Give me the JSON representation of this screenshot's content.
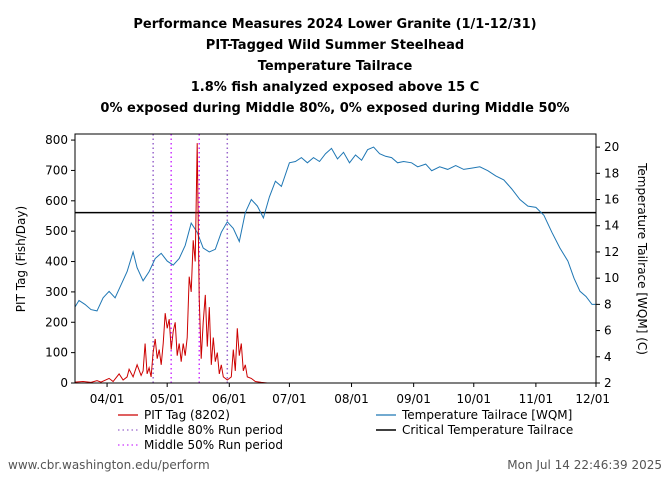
{
  "chart_data": {
    "type": "line",
    "title_lines": [
      "Performance Measures 2024 Lower Granite (1/1-12/31)",
      "PIT-Tagged Wild Summer Steelhead",
      "Temperature Tailrace",
      "1.8% fish analyzed exposed above 15 C",
      "0% exposed during Middle 80%, 0% exposed during Middle 50%"
    ],
    "ylabel": "PIT Tag (Fish/Day)",
    "y2label": "Temperature Tailrace [WQM] (C)",
    "xlim": [
      "2024-03-16",
      "2024-12-01"
    ],
    "ylim": [
      0,
      820
    ],
    "y2lim": [
      2,
      21
    ],
    "x_ticks": [
      {
        "date": "2024-04-01",
        "label": "04/01"
      },
      {
        "date": "2024-05-01",
        "label": "05/01"
      },
      {
        "date": "2024-06-01",
        "label": "06/01"
      },
      {
        "date": "2024-07-01",
        "label": "07/01"
      },
      {
        "date": "2024-08-01",
        "label": "08/01"
      },
      {
        "date": "2024-09-01",
        "label": "09/01"
      },
      {
        "date": "2024-10-01",
        "label": "10/01"
      },
      {
        "date": "2024-11-01",
        "label": "11/01"
      },
      {
        "date": "2024-12-01",
        "label": "12/01"
      }
    ],
    "y_ticks": [
      0,
      100,
      200,
      300,
      400,
      500,
      600,
      700,
      800
    ],
    "y2_ticks": [
      2,
      4,
      6,
      8,
      10,
      12,
      14,
      16,
      18,
      20
    ],
    "critical_temperature": 15,
    "middle_80_dates": [
      "2024-04-24",
      "2024-05-31"
    ],
    "middle_50_dates": [
      "2024-05-03",
      "2024-05-17"
    ],
    "pit_tag": {
      "name": "PIT Tag (8202)",
      "color": "#cc0000",
      "points": [
        [
          "2024-03-16",
          3
        ],
        [
          "2024-03-20",
          5
        ],
        [
          "2024-03-24",
          2
        ],
        [
          "2024-03-27",
          8
        ],
        [
          "2024-03-29",
          3
        ],
        [
          "2024-04-02",
          15
        ],
        [
          "2024-04-04",
          5
        ],
        [
          "2024-04-07",
          30
        ],
        [
          "2024-04-09",
          10
        ],
        [
          "2024-04-11",
          20
        ],
        [
          "2024-04-12",
          45
        ],
        [
          "2024-04-14",
          20
        ],
        [
          "2024-04-16",
          60
        ],
        [
          "2024-04-18",
          25
        ],
        [
          "2024-04-19",
          40
        ],
        [
          "2024-04-20",
          130
        ],
        [
          "2024-04-21",
          30
        ],
        [
          "2024-04-22",
          50
        ],
        [
          "2024-04-23",
          20
        ],
        [
          "2024-04-24",
          100
        ],
        [
          "2024-04-25",
          145
        ],
        [
          "2024-04-26",
          80
        ],
        [
          "2024-04-27",
          110
        ],
        [
          "2024-04-28",
          60
        ],
        [
          "2024-04-29",
          130
        ],
        [
          "2024-04-30",
          230
        ],
        [
          "2024-05-01",
          180
        ],
        [
          "2024-05-02",
          210
        ],
        [
          "2024-05-03",
          110
        ],
        [
          "2024-05-04",
          170
        ],
        [
          "2024-05-05",
          200
        ],
        [
          "2024-05-06",
          90
        ],
        [
          "2024-05-07",
          130
        ],
        [
          "2024-05-08",
          70
        ],
        [
          "2024-05-09",
          130
        ],
        [
          "2024-05-10",
          90
        ],
        [
          "2024-05-11",
          150
        ],
        [
          "2024-05-12",
          350
        ],
        [
          "2024-05-13",
          300
        ],
        [
          "2024-05-14",
          470
        ],
        [
          "2024-05-15",
          400
        ],
        [
          "2024-05-16",
          790
        ],
        [
          "2024-05-17",
          280
        ],
        [
          "2024-05-18",
          80
        ],
        [
          "2024-05-19",
          200
        ],
        [
          "2024-05-20",
          290
        ],
        [
          "2024-05-21",
          120
        ],
        [
          "2024-05-22",
          250
        ],
        [
          "2024-05-23",
          60
        ],
        [
          "2024-05-24",
          150
        ],
        [
          "2024-05-25",
          70
        ],
        [
          "2024-05-26",
          100
        ],
        [
          "2024-05-27",
          30
        ],
        [
          "2024-05-28",
          60
        ],
        [
          "2024-05-29",
          20
        ],
        [
          "2024-05-30",
          15
        ],
        [
          "2024-05-31",
          10
        ],
        [
          "2024-06-02",
          20
        ],
        [
          "2024-06-03",
          110
        ],
        [
          "2024-06-04",
          40
        ],
        [
          "2024-06-05",
          180
        ],
        [
          "2024-06-06",
          90
        ],
        [
          "2024-06-07",
          130
        ],
        [
          "2024-06-08",
          40
        ],
        [
          "2024-06-09",
          60
        ],
        [
          "2024-06-10",
          20
        ],
        [
          "2024-06-12",
          15
        ],
        [
          "2024-06-14",
          5
        ],
        [
          "2024-06-17",
          2
        ],
        [
          "2024-06-20",
          0
        ],
        [
          "2024-06-25",
          0
        ]
      ]
    },
    "temperature": {
      "name": "Temperature Tailrace [WQM]",
      "color": "#1f77b4",
      "points": [
        [
          "2024-03-16",
          7.8
        ],
        [
          "2024-03-18",
          8.3
        ],
        [
          "2024-03-21",
          8.0
        ],
        [
          "2024-03-24",
          7.6
        ],
        [
          "2024-03-27",
          7.5
        ],
        [
          "2024-03-30",
          8.5
        ],
        [
          "2024-04-02",
          9.0
        ],
        [
          "2024-04-05",
          8.5
        ],
        [
          "2024-04-08",
          9.5
        ],
        [
          "2024-04-11",
          10.5
        ],
        [
          "2024-04-14",
          12.0
        ],
        [
          "2024-04-16",
          10.8
        ],
        [
          "2024-04-19",
          9.8
        ],
        [
          "2024-04-22",
          10.5
        ],
        [
          "2024-04-25",
          11.5
        ],
        [
          "2024-04-28",
          11.9
        ],
        [
          "2024-05-01",
          11.3
        ],
        [
          "2024-05-04",
          11.0
        ],
        [
          "2024-05-07",
          11.5
        ],
        [
          "2024-05-10",
          12.5
        ],
        [
          "2024-05-13",
          14.2
        ],
        [
          "2024-05-16",
          13.5
        ],
        [
          "2024-05-19",
          12.3
        ],
        [
          "2024-05-22",
          12.0
        ],
        [
          "2024-05-25",
          12.2
        ],
        [
          "2024-05-28",
          13.5
        ],
        [
          "2024-05-31",
          14.3
        ],
        [
          "2024-06-03",
          13.8
        ],
        [
          "2024-06-06",
          12.8
        ],
        [
          "2024-06-09",
          15.0
        ],
        [
          "2024-06-12",
          16.0
        ],
        [
          "2024-06-15",
          15.5
        ],
        [
          "2024-06-18",
          14.6
        ],
        [
          "2024-06-21",
          16.2
        ],
        [
          "2024-06-24",
          17.4
        ],
        [
          "2024-06-27",
          17.0
        ],
        [
          "2024-07-01",
          18.8
        ],
        [
          "2024-07-04",
          18.9
        ],
        [
          "2024-07-07",
          19.2
        ],
        [
          "2024-07-10",
          18.8
        ],
        [
          "2024-07-13",
          19.2
        ],
        [
          "2024-07-16",
          18.9
        ],
        [
          "2024-07-19",
          19.5
        ],
        [
          "2024-07-22",
          19.9
        ],
        [
          "2024-07-25",
          19.1
        ],
        [
          "2024-07-28",
          19.6
        ],
        [
          "2024-07-31",
          18.8
        ],
        [
          "2024-08-03",
          19.4
        ],
        [
          "2024-08-06",
          19.0
        ],
        [
          "2024-08-09",
          19.8
        ],
        [
          "2024-08-12",
          20.0
        ],
        [
          "2024-08-15",
          19.5
        ],
        [
          "2024-08-18",
          19.3
        ],
        [
          "2024-08-21",
          19.2
        ],
        [
          "2024-08-24",
          18.8
        ],
        [
          "2024-08-27",
          18.9
        ],
        [
          "2024-08-31",
          18.8
        ],
        [
          "2024-09-03",
          18.5
        ],
        [
          "2024-09-07",
          18.7
        ],
        [
          "2024-09-10",
          18.2
        ],
        [
          "2024-09-14",
          18.5
        ],
        [
          "2024-09-18",
          18.3
        ],
        [
          "2024-09-22",
          18.6
        ],
        [
          "2024-09-26",
          18.3
        ],
        [
          "2024-09-30",
          18.4
        ],
        [
          "2024-10-04",
          18.5
        ],
        [
          "2024-10-08",
          18.2
        ],
        [
          "2024-10-12",
          17.8
        ],
        [
          "2024-10-16",
          17.5
        ],
        [
          "2024-10-20",
          16.8
        ],
        [
          "2024-10-24",
          16.0
        ],
        [
          "2024-10-28",
          15.5
        ],
        [
          "2024-11-01",
          15.4
        ],
        [
          "2024-11-05",
          14.8
        ],
        [
          "2024-11-09",
          13.5
        ],
        [
          "2024-11-13",
          12.3
        ],
        [
          "2024-11-17",
          11.3
        ],
        [
          "2024-11-20",
          10.0
        ],
        [
          "2024-11-23",
          9.0
        ],
        [
          "2024-11-26",
          8.6
        ],
        [
          "2024-11-29",
          8.0
        ],
        [
          "2024-12-01",
          8.0
        ]
      ]
    },
    "legend": {
      "pit": "PIT Tag (8202)",
      "mid80": "Middle 80% Run period",
      "mid50": "Middle 50% Run period",
      "temp": "Temperature Tailrace [WQM]",
      "critical": "Critical Temperature Tailrace"
    },
    "colors": {
      "pit": "#cc0000",
      "temp": "#1f77b4",
      "mid80": "#9966cc",
      "mid50": "#cc33ff",
      "critical": "#000000"
    },
    "grid": false
  },
  "footer": {
    "source": "www.cbr.washington.edu/perform",
    "timestamp": "Mon Jul 14 22:46:39 2025"
  }
}
